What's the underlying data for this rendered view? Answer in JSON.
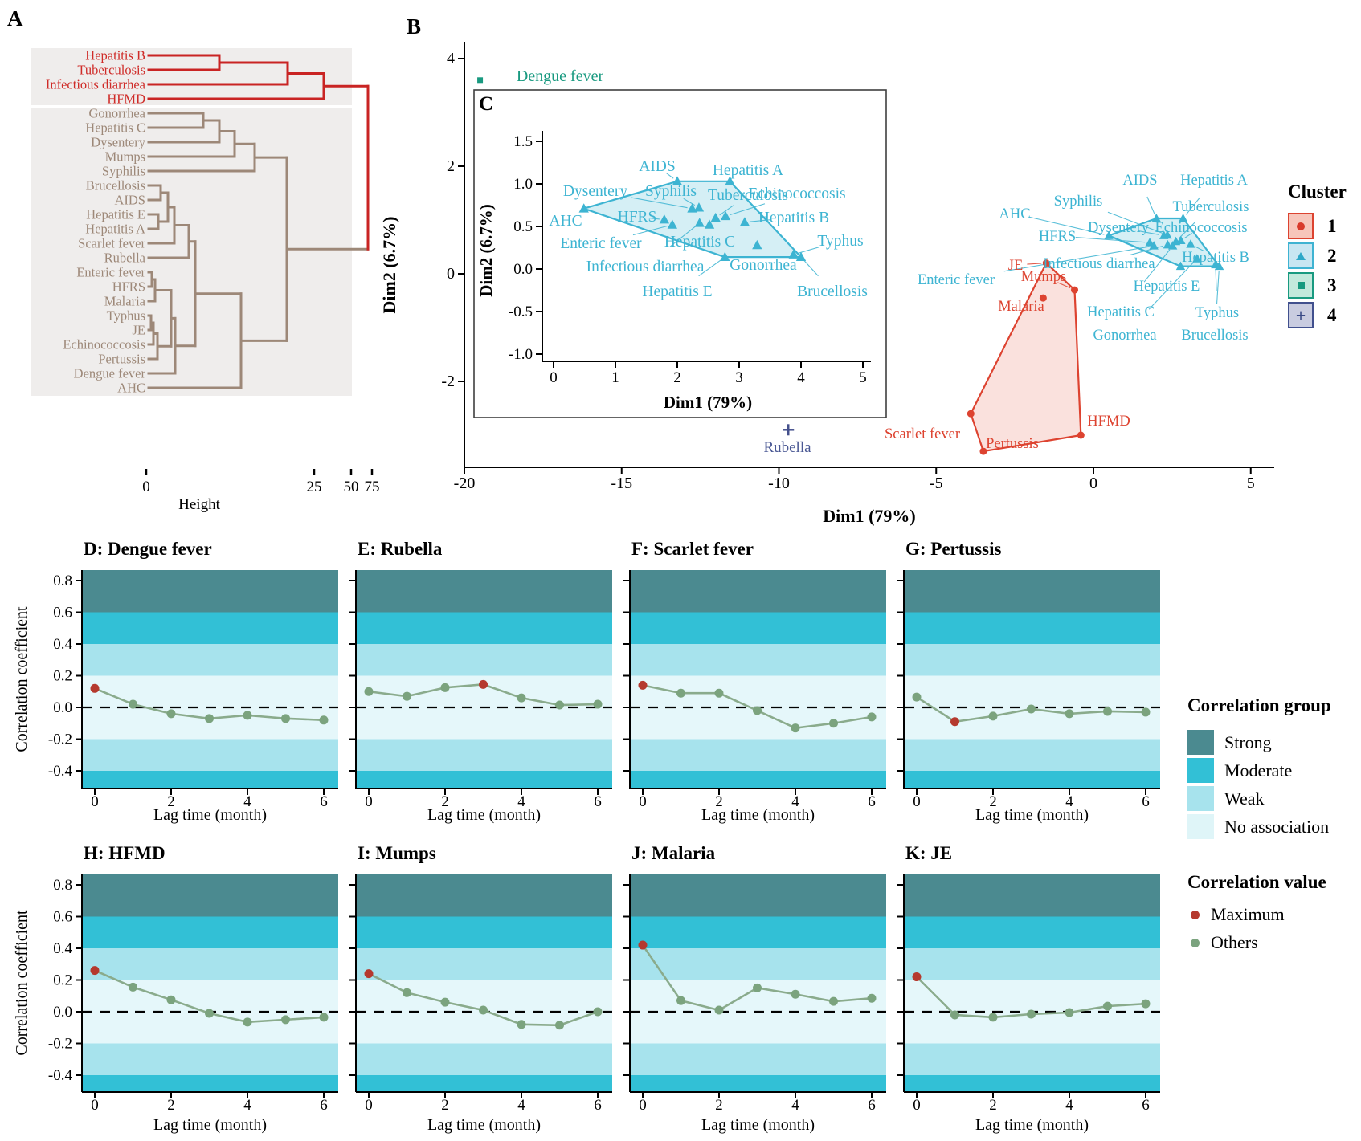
{
  "panel_labels": {
    "a": "A",
    "b": "B",
    "c": "C"
  },
  "legends": {
    "cluster": {
      "title": "Cluster",
      "items": [
        {
          "label": "1",
          "fill": "#f7c6bb",
          "border": "#dc4330",
          "symbol": "circle",
          "symbol_color": "#d93a2b"
        },
        {
          "label": "2",
          "fill": "#c8e6f2",
          "border": "#3fb3d2",
          "symbol": "triangle",
          "symbol_color": "#2ea8c8"
        },
        {
          "label": "3",
          "fill": "#c2e9dc",
          "border": "#199a80",
          "symbol": "square",
          "symbol_color": "#169a7f"
        },
        {
          "label": "4",
          "fill": "#c9cce0",
          "border": "#41508e",
          "symbol": "plus",
          "symbol_color": "#3a4a86"
        }
      ]
    },
    "correlation_group": {
      "title": "Correlation group",
      "items": [
        {
          "label": "Strong",
          "color": "#4b8a90"
        },
        {
          "label": "Moderate",
          "color": "#32c0d6"
        },
        {
          "label": "Weak",
          "color": "#a7e3ed"
        },
        {
          "label": "No association",
          "color": "#dff5f8"
        }
      ]
    },
    "correlation_value": {
      "title": "Correlation value",
      "items": [
        {
          "label": "Maximum",
          "color": "#b5392e"
        },
        {
          "label": "Others",
          "color": "#7ba37e"
        }
      ]
    }
  },
  "chart_data": [
    {
      "id": "A",
      "type": "dendrogram",
      "axis": {
        "title": "Height",
        "ticks": [
          {
            "label": "0",
            "x": 182
          },
          {
            "label": "25",
            "x": 391
          },
          {
            "label": "50",
            "x": 437
          },
          {
            "label": "75",
            "x": 463
          }
        ]
      },
      "colors": {
        "red": "#c92423",
        "brown": "#9d8878",
        "red_label": "#cf2b28",
        "box": "#efedec"
      },
      "leaves": [
        "Hepatitis B",
        "Tuberculosis",
        "Infectious diarrhea",
        "HFMD",
        "Gonorrhea",
        "Hepatitis C",
        "Dysentery",
        "Mumps",
        "Syphilis",
        "Brucellosis",
        "AIDS",
        "Hepatitis E",
        "Hepatitis A",
        "Scarlet fever",
        "Rubella",
        "Enteric fever",
        "HFRS",
        "Malaria",
        "Typhus",
        "JE",
        "Echinococcosis",
        "Pertussis",
        "Dengue fever",
        "AHC"
      ],
      "red_leaf_count": 4,
      "tree": {
        "x": 458,
        "c": [
          {
            "x": 403,
            "c": [
              {
                "x": 358,
                "c": [
                  {
                    "x": 273,
                    "c": [
                      "Hepatitis B",
                      "Tuberculosis"
                    ]
                  },
                  "Infectious diarrhea"
                ]
              },
              "HFMD"
            ]
          },
          {
            "x": 357,
            "c": [
              {
                "x": 317,
                "c": [
                  {
                    "x": 292,
                    "c": [
                      {
                        "x": 273,
                        "c": [
                          {
                            "x": 253,
                            "c": [
                              "Gonorrhea",
                              "Hepatitis C"
                            ]
                          },
                          "Dysentery"
                        ]
                      },
                      "Mumps"
                    ]
                  },
                  "Syphilis"
                ]
              },
              {
                "x": 300,
                "c": [
                  {
                    "x": 243,
                    "c": [
                      {
                        "x": 235,
                        "c": [
                          {
                            "x": 217,
                            "c": [
                              {
                                "x": 209,
                                "c": [
                                  {
                                    "x": 200,
                                    "c": [
                                      "Brucellosis",
                                      "AIDS"
                                    ]
                                  },
                                  {
                                    "x": 197,
                                    "c": [
                                      "Hepatitis E",
                                      "Hepatitis A"
                                    ]
                                  }
                                ]
                              },
                              "Scarlet fever"
                            ]
                          },
                          "Rubella"
                        ]
                      },
                      {
                        "x": 218,
                        "c": [
                          {
                            "x": 213,
                            "c": [
                              {
                                "x": 193,
                                "c": [
                                  {
                                    "x": 189,
                                    "c": [
                                      "Enteric fever",
                                      "HFRS"
                                    ]
                                  },
                                  "Malaria"
                                ]
                              },
                              {
                                "x": 196,
                                "c": [
                                  {
                                    "x": 191,
                                    "c": [
                                      {
                                        "x": 188,
                                        "c": [
                                          "Typhus",
                                          "JE"
                                        ]
                                      },
                                      "Echinococcosis"
                                    ]
                                  },
                                  "Pertussis"
                                ]
                              }
                            ]
                          },
                          "Dengue fever"
                        ]
                      }
                    ]
                  },
                  "AHC"
                ]
              }
            ]
          }
        ]
      }
    },
    {
      "id": "B",
      "type": "scatter",
      "xlabel": "Dim1 (79%)",
      "ylabel": "Dim2 (6.7%)",
      "xticks": [
        -20,
        -15,
        -10,
        -5,
        0,
        5
      ],
      "yticks": [
        4,
        2,
        0,
        -2
      ],
      "xlim": [
        -20,
        5.7
      ],
      "ylim": [
        -3.6,
        4.4
      ],
      "clusters": {
        "1": {
          "color": "#dd4330",
          "fill": "rgba(224,66,46,0.16)",
          "marker": "circle",
          "points": [
            {
              "name": "JE",
              "x": -1.5,
              "y": 0.2,
              "lm": [
                1264,
                330
              ]
            },
            {
              "name": "Mumps",
              "x": -0.6,
              "y": -0.3,
              "lm": [
                1299,
                344
              ]
            },
            {
              "name": "Malaria",
              "x": -1.6,
              "y": -0.45,
              "lm": [
                1271,
                381
              ],
              "leader": false
            },
            {
              "name": "Scarlet fever",
              "x": -3.9,
              "y": -2.6,
              "lm": [
                1148,
                540
              ],
              "leader": false
            },
            {
              "name": "Pertussis",
              "x": -3.5,
              "y": -3.3,
              "lm": [
                1260,
                552
              ],
              "leader": false
            },
            {
              "name": "HFMD",
              "x": -0.4,
              "y": -3.0,
              "lm": [
                1380,
                524
              ],
              "leader": false
            }
          ],
          "hull": [
            "JE",
            "Mumps",
            "HFMD",
            "Pertussis",
            "Scarlet fever"
          ]
        },
        "2": {
          "color": "#3db4d2",
          "fill": "rgba(62,180,210,0.22)",
          "marker": "triangle",
          "points": [
            {
              "name": "AHC",
              "x": 0.49,
              "y": 0.71,
              "lm": [
                1263,
                266
              ],
              "li": [
                704,
                275
              ]
            },
            {
              "name": "AIDS",
              "x": 2.0,
              "y": 1.03,
              "lm": [
                1419,
                224
              ],
              "li": [
                818,
                207
              ]
            },
            {
              "name": "Hepatitis A",
              "x": 2.85,
              "y": 1.03,
              "lm": [
                1511,
                224
              ],
              "li": [
                931,
                212
              ]
            },
            {
              "name": "Dysentery",
              "x": 2.24,
              "y": 0.71,
              "lm": [
                1392,
                283
              ],
              "li": [
                741,
                238
              ]
            },
            {
              "name": "Syphilis",
              "x": 2.35,
              "y": 0.72,
              "lm": [
                1342,
                250
              ],
              "li": [
                835,
                238
              ]
            },
            {
              "name": "Tuberculosis",
              "x": 2.62,
              "y": 0.6,
              "lm": [
                1507,
                257
              ],
              "li": [
                931,
                243
              ]
            },
            {
              "name": "Echinococcosis",
              "x": 2.78,
              "y": 0.62,
              "lm": [
                1495,
                283
              ],
              "li": [
                992,
                241
              ]
            },
            {
              "name": "HFRS",
              "x": 1.79,
              "y": 0.58,
              "lm": [
                1316,
                294
              ],
              "li": [
                793,
                270
              ]
            },
            {
              "name": "Enteric fever",
              "x": 1.92,
              "y": 0.52,
              "lm": [
                1190,
                348
              ],
              "li": [
                748,
                303
              ]
            },
            {
              "name": "Infectious diarrhea",
              "x": 2.36,
              "y": 0.54,
              "lm": [
                1368,
                328
              ],
              "li": [
                803,
                332
              ]
            },
            {
              "name": "Hepatitis C",
              "x": 2.52,
              "y": 0.52,
              "lm": [
                1395,
                388
              ],
              "li": [
                871,
                301
              ]
            },
            {
              "name": "Hepatitis B",
              "x": 3.09,
              "y": 0.55,
              "lm": [
                1513,
                320
              ],
              "li": [
                988,
                271
              ]
            },
            {
              "name": "Gonorrhea",
              "x": 3.29,
              "y": 0.28,
              "lm": [
                1400,
                417
              ],
              "li": [
                950,
                330
              ]
            },
            {
              "name": "Hepatitis E",
              "x": 2.77,
              "y": 0.14,
              "lm": [
                1452,
                356
              ],
              "li": [
                843,
                363
              ]
            },
            {
              "name": "Typhus",
              "x": 3.88,
              "y": 0.17,
              "lm": [
                1515,
                389
              ],
              "li": [
                1046,
                300
              ]
            },
            {
              "name": "Brucellosis",
              "x": 4.0,
              "y": 0.14,
              "lm": [
                1512,
                417
              ],
              "li": [
                1036,
                363
              ]
            }
          ],
          "hull": [
            "AHC",
            "AIDS",
            "Hepatitis A",
            "Brucellosis",
            "Hepatitis E"
          ]
        },
        "3": {
          "color": "#199a80",
          "marker": "square",
          "points": [
            {
              "name": "Dengue fever",
              "x": -19.5,
              "y": 3.6,
              "lm": [
                697,
                94
              ],
              "leader": false
            }
          ]
        },
        "4": {
          "color": "#44508c",
          "marker": "plus",
          "points": [
            {
              "name": "Rubella",
              "x": -9.7,
              "y": -2.9,
              "lm": [
                980,
                557
              ],
              "leader": false
            }
          ]
        }
      }
    },
    {
      "id": "C",
      "type": "scatter-inset",
      "note": "zoom of cluster 2",
      "xlabel": "Dim1 (79%)",
      "ylabel": "Dim2 (6.7%)",
      "xticks": [
        0,
        1,
        2,
        3,
        4,
        5
      ],
      "yticks": [
        "1.5",
        "1.0",
        "0.5",
        "0.0",
        "-0.5",
        "-1.0"
      ]
    },
    {
      "id": "D",
      "type": "line",
      "title": "D: Dengue fever",
      "disease": "Dengue fever",
      "x": [
        0,
        1,
        2,
        3,
        4,
        5,
        6
      ],
      "values": [
        0.12,
        0.02,
        -0.04,
        -0.07,
        -0.05,
        -0.07,
        -0.08
      ],
      "max_index": 0
    },
    {
      "id": "E",
      "type": "line",
      "title": "E: Rubella",
      "disease": "Rubella",
      "x": [
        0,
        1,
        2,
        3,
        4,
        5,
        6
      ],
      "values": [
        0.1,
        0.07,
        0.125,
        0.145,
        0.06,
        0.015,
        0.02
      ],
      "max_index": 3
    },
    {
      "id": "F",
      "type": "line",
      "title": "F: Scarlet fever",
      "disease": "Scarlet fever",
      "x": [
        0,
        1,
        2,
        3,
        4,
        5,
        6
      ],
      "values": [
        0.14,
        0.09,
        0.09,
        -0.02,
        -0.13,
        -0.1,
        -0.06
      ],
      "max_index": 0
    },
    {
      "id": "G",
      "type": "line",
      "title": "G: Pertussis",
      "disease": "Pertussis",
      "x": [
        0,
        1,
        2,
        3,
        4,
        5,
        6
      ],
      "values": [
        0.065,
        -0.09,
        -0.055,
        -0.01,
        -0.04,
        -0.025,
        -0.03
      ],
      "max_index": 1
    },
    {
      "id": "H",
      "type": "line",
      "title": "H: HFMD",
      "disease": "HFMD",
      "x": [
        0,
        1,
        2,
        3,
        4,
        5,
        6
      ],
      "values": [
        0.26,
        0.155,
        0.075,
        -0.01,
        -0.065,
        -0.05,
        -0.035
      ],
      "max_index": 0
    },
    {
      "id": "I",
      "type": "line",
      "title": "I: Mumps",
      "disease": "Mumps",
      "x": [
        0,
        1,
        2,
        3,
        4,
        5,
        6
      ],
      "values": [
        0.24,
        0.12,
        0.06,
        0.01,
        -0.08,
        -0.085,
        0.0
      ],
      "max_index": 0
    },
    {
      "id": "J",
      "type": "line",
      "title": "J: Malaria",
      "disease": "Malaria",
      "x": [
        0,
        1,
        2,
        3,
        4,
        5,
        6
      ],
      "values": [
        0.42,
        0.07,
        0.01,
        0.15,
        0.11,
        0.065,
        0.085
      ],
      "max_index": 0
    },
    {
      "id": "K",
      "type": "line",
      "title": "K: JE",
      "disease": "JE",
      "x": [
        0,
        1,
        2,
        3,
        4,
        5,
        6
      ],
      "values": [
        0.22,
        -0.02,
        -0.035,
        -0.015,
        -0.005,
        0.035,
        0.05
      ],
      "max_index": 0
    }
  ],
  "correlation_common": {
    "xlabel": "Lag time (month)",
    "ylabel": "Correlation coefficient",
    "yticks": [
      "0.8",
      "0.6",
      "0.4",
      "0.2",
      "0.0",
      "-0.2",
      "-0.4"
    ],
    "xticks": [
      "0",
      "2",
      "4",
      "6"
    ],
    "bands": {
      "strong": 0.6,
      "moderate": 0.4,
      "weak": 0.2,
      "none": -0.2,
      "weak2": -0.4
    },
    "line_color": "#8aab8c",
    "dot_color": "#7ba37e",
    "max_color": "#b5392e",
    "band_colors": {
      "strong": "#4b8a90",
      "moderate": "#32c0d6",
      "weak": "#a7e3ed",
      "none": "#e5f7fa"
    }
  }
}
